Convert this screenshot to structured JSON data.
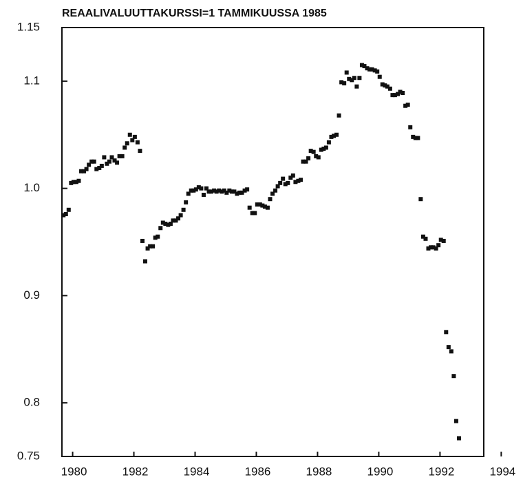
{
  "chart_data": {
    "type": "scatter",
    "title": "REAALIVALUUTTAKURSSI=1 TAMMIKUUSSA 1985",
    "color": "#111111",
    "xlim": [
      1979.65,
      1993.43
    ],
    "xticks": [
      1980,
      1982,
      1984,
      1986,
      1988,
      1990,
      1992,
      1994
    ],
    "ylim": [
      0.75,
      1.15
    ],
    "yticks": [
      0.75,
      {
        "value": 0.8,
        "label": "0.8"
      },
      {
        "value": 0.9,
        "label": "0.9"
      },
      {
        "value": 1,
        "label": "1.0"
      },
      {
        "value": 1.1,
        "label": "1.1"
      },
      1.15
    ],
    "x": [
      1979.7,
      1979.78,
      1979.87,
      1979.95,
      1980.03,
      1980.12,
      1980.2,
      1980.28,
      1980.37,
      1980.45,
      1980.53,
      1980.62,
      1980.7,
      1980.78,
      1980.87,
      1980.95,
      1981.03,
      1981.12,
      1981.2,
      1981.28,
      1981.37,
      1981.45,
      1981.53,
      1981.62,
      1981.7,
      1981.78,
      1981.87,
      1981.95,
      1982.03,
      1982.12,
      1982.2,
      1982.28,
      1982.37,
      1982.45,
      1982.53,
      1982.62,
      1982.7,
      1982.78,
      1982.87,
      1982.95,
      1983.03,
      1983.12,
      1983.2,
      1983.28,
      1983.37,
      1983.45,
      1983.53,
      1983.62,
      1983.7,
      1983.78,
      1983.87,
      1983.95,
      1984.03,
      1984.12,
      1984.2,
      1984.28,
      1984.37,
      1984.45,
      1984.53,
      1984.62,
      1984.7,
      1984.78,
      1984.87,
      1984.95,
      1985.03,
      1985.12,
      1985.2,
      1985.28,
      1985.37,
      1985.45,
      1985.53,
      1985.62,
      1985.7,
      1985.78,
      1985.87,
      1985.95,
      1986.03,
      1986.12,
      1986.2,
      1986.28,
      1986.37,
      1986.45,
      1986.53,
      1986.62,
      1986.7,
      1986.78,
      1986.87,
      1986.95,
      1987.03,
      1987.12,
      1987.2,
      1987.28,
      1987.37,
      1987.45,
      1987.53,
      1987.62,
      1987.7,
      1987.78,
      1987.87,
      1987.95,
      1988.03,
      1988.12,
      1988.2,
      1988.28,
      1988.37,
      1988.45,
      1988.53,
      1988.62,
      1988.7,
      1988.78,
      1988.87,
      1988.95,
      1989.03,
      1989.12,
      1989.2,
      1989.28,
      1989.37,
      1989.45,
      1989.53,
      1989.62,
      1989.7,
      1989.78,
      1989.87,
      1989.95,
      1990.03,
      1990.12,
      1990.2,
      1990.28,
      1990.37,
      1990.45,
      1990.53,
      1990.62,
      1990.7,
      1990.78,
      1990.87,
      1990.95,
      1991.03,
      1991.12,
      1991.2,
      1991.28,
      1991.37,
      1991.45,
      1991.53,
      1991.62,
      1991.7,
      1991.78,
      1991.87,
      1991.95,
      1992.03,
      1992.12,
      1992.2,
      1992.28,
      1992.37,
      1992.45,
      1992.53,
      1992.62
    ],
    "values": [
      0.975,
      0.976,
      0.98,
      1.005,
      1.006,
      1.006,
      1.007,
      1.016,
      1.016,
      1.018,
      1.022,
      1.025,
      1.025,
      1.018,
      1.019,
      1.021,
      1.029,
      1.023,
      1.025,
      1.029,
      1.026,
      1.024,
      1.03,
      1.03,
      1.038,
      1.042,
      1.05,
      1.045,
      1.048,
      1.043,
      1.035,
      0.951,
      0.932,
      0.944,
      0.946,
      0.946,
      0.954,
      0.955,
      0.963,
      0.968,
      0.967,
      0.966,
      0.967,
      0.97,
      0.97,
      0.972,
      0.975,
      0.98,
      0.987,
      0.995,
      0.998,
      0.998,
      0.999,
      1.001,
      1.0,
      0.994,
      1.0,
      0.997,
      0.997,
      0.998,
      0.997,
      0.998,
      0.997,
      0.998,
      0.996,
      0.998,
      0.997,
      0.997,
      0.995,
      0.996,
      0.996,
      0.998,
      0.999,
      0.982,
      0.977,
      0.977,
      0.985,
      0.985,
      0.984,
      0.983,
      0.982,
      0.99,
      0.995,
      0.998,
      1.002,
      1.005,
      1.009,
      1.004,
      1.005,
      1.01,
      1.012,
      1.006,
      1.007,
      1.008,
      1.025,
      1.025,
      1.028,
      1.035,
      1.034,
      1.03,
      1.029,
      1.036,
      1.037,
      1.038,
      1.043,
      1.048,
      1.049,
      1.05,
      1.068,
      1.099,
      1.098,
      1.108,
      1.102,
      1.101,
      1.103,
      1.095,
      1.103,
      1.115,
      1.114,
      1.112,
      1.111,
      1.111,
      1.11,
      1.109,
      1.104,
      1.097,
      1.096,
      1.095,
      1.093,
      1.087,
      1.087,
      1.088,
      1.09,
      1.089,
      1.077,
      1.078,
      1.057,
      1.048,
      1.047,
      1.047,
      0.99,
      0.955,
      0.953,
      0.944,
      0.945,
      0.945,
      0.944,
      0.947,
      0.952,
      0.951,
      0.866,
      0.852,
      0.848,
      0.825,
      0.783,
      0.767
    ]
  }
}
